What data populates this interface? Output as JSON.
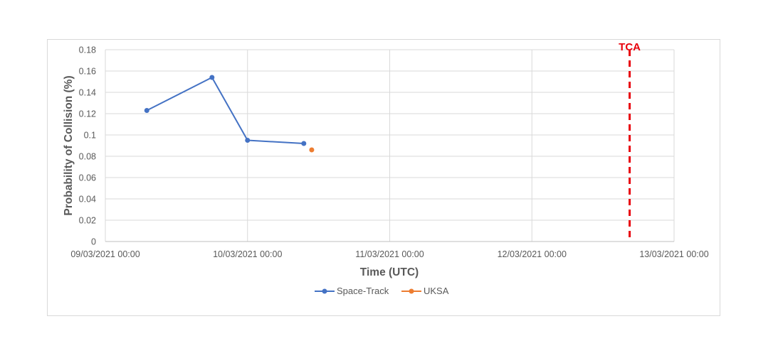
{
  "chart_data": {
    "type": "scatter",
    "xlabel": "Time (UTC)",
    "ylabel": "Probability of Collision (%)",
    "ylim": [
      0,
      0.18
    ],
    "yticks": [
      "0",
      "0.02",
      "0.04",
      "0.06",
      "0.08",
      "0.1",
      "0.12",
      "0.14",
      "0.16",
      "0.18"
    ],
    "xlim": [
      "09/03/2021 00:00",
      "13/03/2021 00:00"
    ],
    "xticks": [
      "09/03/2021 00:00",
      "10/03/2021 00:00",
      "11/03/2021 00:00",
      "12/03/2021 00:00",
      "13/03/2021 00:00"
    ],
    "grid": true,
    "legend_position": "bottom",
    "series": [
      {
        "name": "Space-Track",
        "color": "#4472c4",
        "lines": true,
        "points": [
          {
            "x": "09/03/2021 07:00",
            "y": 0.123
          },
          {
            "x": "09/03/2021 18:00",
            "y": 0.154
          },
          {
            "x": "10/03/2021 00:00",
            "y": 0.095
          },
          {
            "x": "10/03/2021 09:30",
            "y": 0.092
          }
        ]
      },
      {
        "name": "UKSA",
        "color": "#ed7d31",
        "lines": false,
        "points": [
          {
            "x": "10/03/2021 10:50",
            "y": 0.086
          }
        ]
      }
    ],
    "annotations": [
      {
        "label": "TCA",
        "x": "12/03/2021 16:30",
        "color": "#e8000b",
        "style": "dashed-vertical-line"
      }
    ]
  }
}
